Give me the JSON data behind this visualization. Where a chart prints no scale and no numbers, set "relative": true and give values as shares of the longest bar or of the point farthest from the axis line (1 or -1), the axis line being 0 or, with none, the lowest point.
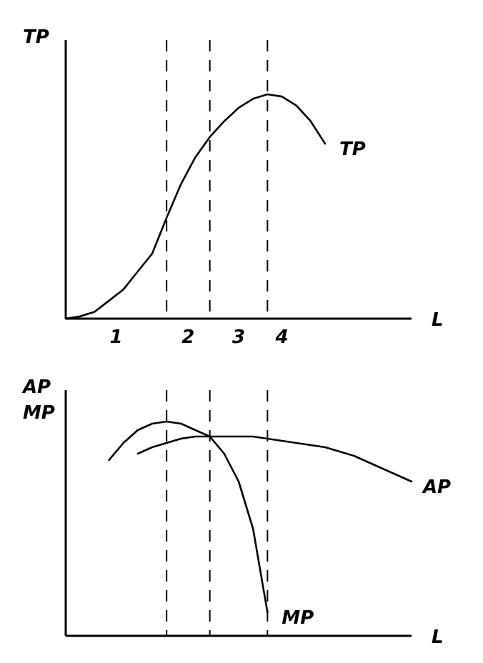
{
  "chart_data": [
    {
      "type": "line",
      "relative": true,
      "grid": "x",
      "ylabel": "TP",
      "xlabel": "L",
      "marker": "none",
      "line_style": "solid",
      "categories": [
        null,
        null,
        null,
        null,
        null,
        null,
        null,
        null,
        null,
        null,
        null,
        null,
        null,
        null,
        null,
        null,
        null,
        null,
        null,
        null,
        null,
        null,
        null,
        null,
        null
      ],
      "series": [
        {
          "name": "TP",
          "color": "#000000",
          "values": [
            0,
            0.01,
            0.03,
            0.08,
            0.13,
            0.21,
            0.29,
            0.45,
            0.6,
            0.72,
            0.81,
            0.88,
            0.94,
            0.98,
            1,
            0.99,
            0.95,
            0.88,
            0.78,
            null,
            null,
            null,
            null,
            null,
            null
          ]
        }
      ],
      "annotations": [
        "1",
        "2",
        "3",
        "4"
      ]
    },
    {
      "type": "line",
      "relative": true,
      "grid": "x",
      "ylabel": "AP\nMP",
      "xlabel": "L",
      "marker": "none",
      "line_style": "solid",
      "categories": [
        null,
        null,
        null,
        null,
        null,
        null,
        null,
        null,
        null,
        null,
        null,
        null,
        null,
        null,
        null,
        null,
        null,
        null,
        null,
        null,
        null,
        null,
        null,
        null,
        null
      ],
      "series": [
        {
          "name": "MP",
          "color": "#000000",
          "values": [
            null,
            null,
            null,
            0.82,
            0.9,
            0.96,
            0.99,
            1,
            0.99,
            0.96,
            0.93,
            0.85,
            0.72,
            0.5,
            0.11,
            null,
            null,
            null,
            null,
            null,
            null,
            null,
            null,
            null,
            null
          ]
        },
        {
          "name": "AP",
          "color": "#000000",
          "values": [
            null,
            null,
            null,
            null,
            null,
            0.85,
            0.88,
            0.9,
            0.92,
            0.93,
            0.93,
            0.93,
            0.93,
            0.93,
            0.92,
            0.91,
            0.9,
            0.89,
            0.88,
            0.86,
            0.84,
            0.81,
            0.78,
            0.75,
            0.72
          ]
        }
      ]
    }
  ]
}
